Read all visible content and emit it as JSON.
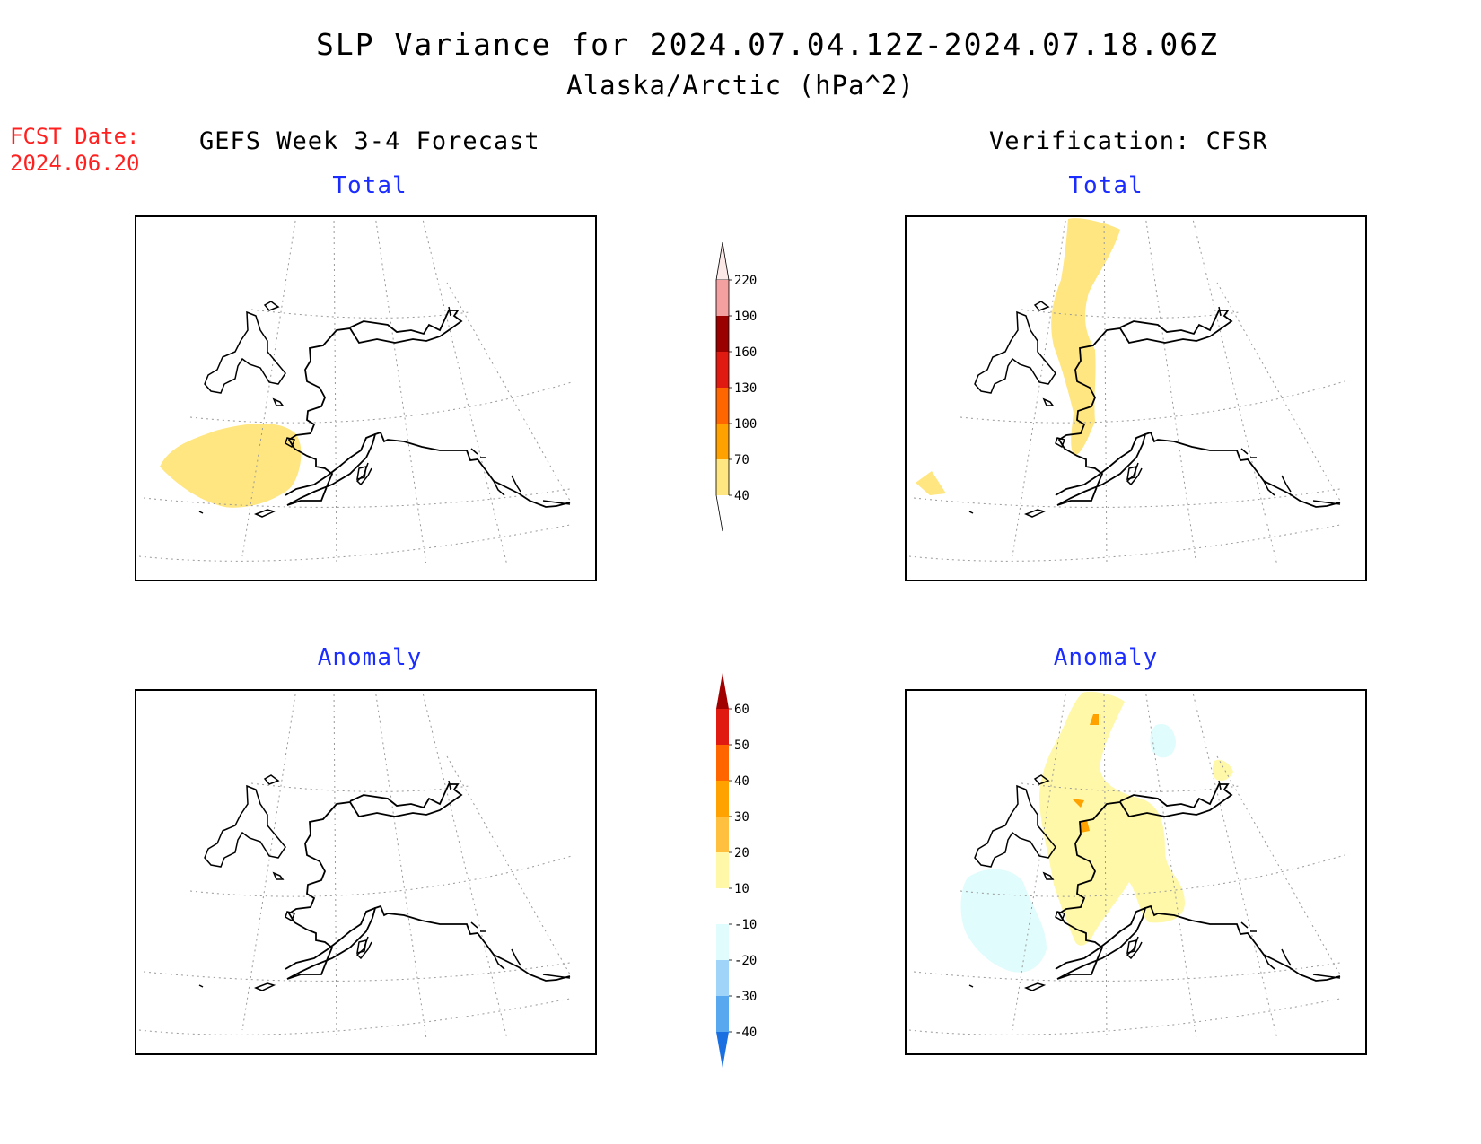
{
  "title": "SLP Variance for 2024.07.04.12Z-2024.07.18.06Z",
  "subtitle": "Alaska/Arctic (hPa^2)",
  "fcst": {
    "label": "FCST Date:",
    "date": "2024.06.20"
  },
  "columns": {
    "left": "GEFS Week 3-4 Forecast",
    "right": "Verification: CFSR"
  },
  "panels": {
    "forecast_total": "Total",
    "verification_total": "Total",
    "forecast_anomaly": "Anomaly",
    "verification_anomaly": "Anomaly"
  },
  "colorbar_total": {
    "labels": [
      "220",
      "190",
      "160",
      "130",
      "100",
      "70",
      "40"
    ],
    "colors": [
      "#fde8e8",
      "#f4a0a0",
      "#9b0000",
      "#e01a10",
      "#ff6600",
      "#ffa200",
      "#ffe680"
    ]
  },
  "colorbar_anomaly": {
    "labels": [
      "60",
      "50",
      "40",
      "30",
      "20",
      "10",
      "-10",
      "-20",
      "-30",
      "-40"
    ],
    "colors": [
      "#a00000",
      "#e01a10",
      "#ff6600",
      "#ffa200",
      "#ffc040",
      "#fff8a8",
      "#ffffff",
      "#e0fcfc",
      "#a0d4f8",
      "#58a8f0",
      "#1a70e0"
    ]
  }
}
